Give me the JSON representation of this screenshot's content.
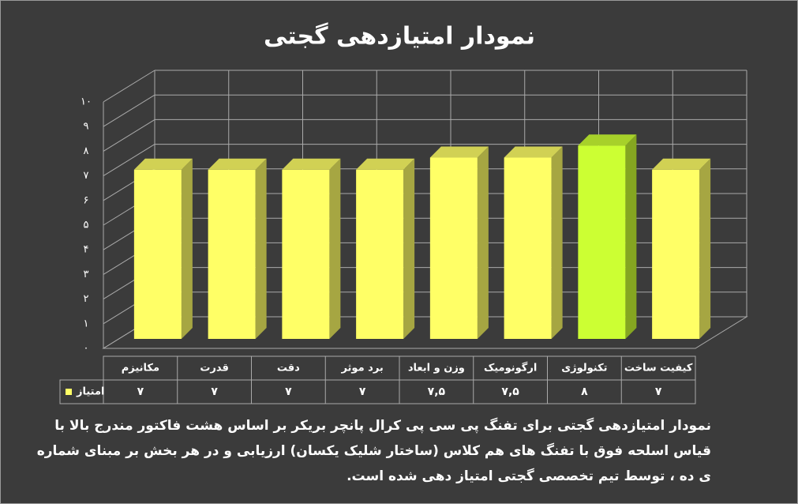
{
  "chart_data": {
    "type": "bar3d",
    "title": "نمودار امتیازدهی گجتی",
    "categories": [
      "مکانیزم",
      "قدرت",
      "دقت",
      "برد موثر",
      "وزن و ابعاد",
      "ارگونومیک",
      "تکنولوژی",
      "کیفیت ساخت"
    ],
    "series": [
      {
        "name": "امتیاز",
        "color": "#ffff66",
        "values": [
          7,
          7,
          7,
          7,
          7.5,
          7.5,
          8,
          7
        ],
        "value_labels": [
          "۷",
          "۷",
          "۷",
          "۷",
          "۷,۵",
          "۷,۵",
          "۸",
          "۷"
        ],
        "bar_colors": [
          "#ffff66",
          "#ffff66",
          "#ffff66",
          "#ffff66",
          "#ffff66",
          "#ffff66",
          "#ccff33",
          "#ffff66"
        ]
      }
    ],
    "ylim": [
      0,
      10
    ],
    "yticks": [
      {
        "value": 0,
        "label": "۰"
      },
      {
        "value": 1,
        "label": "۱"
      },
      {
        "value": 2,
        "label": "۲"
      },
      {
        "value": 3,
        "label": "۳"
      },
      {
        "value": 4,
        "label": "۴"
      },
      {
        "value": 5,
        "label": "۵"
      },
      {
        "value": 6,
        "label": "۶"
      },
      {
        "value": 7,
        "label": "۷"
      },
      {
        "value": 8,
        "label": "۸"
      },
      {
        "value": 9,
        "label": "۹"
      },
      {
        "value": 10,
        "label": "۱۰"
      }
    ],
    "grid": true,
    "caption": "نمودار امتیازدهی گجتی برای تفنگ پی سی پی کرال پانچر بریکر بر اساس هشت فاکتور مندرج بالا با قیاس اسلحه فوق با تفنگ های هم کلاس (ساختار شلیک یکسان) ارزیابی و در هر بخش بر مبنای شماره ی ده ، توسط تیم تخصصی گجتی امتیاز دهی شده است."
  }
}
